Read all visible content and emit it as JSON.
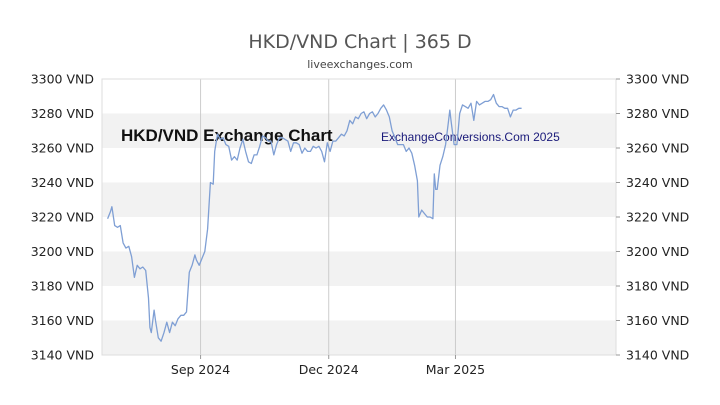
{
  "chart_data": {
    "type": "line",
    "title": "HKD/VND Chart | 365 D",
    "subtitle": "liveexchanges.com",
    "watermark_left": "HKD/VND Exchange Chart",
    "watermark_right": "ExchangeConversions.Com 2025",
    "xlabel": "",
    "ylabel": "",
    "ylim": [
      3140,
      3300
    ],
    "yticks": [
      3140,
      3160,
      3180,
      3200,
      3220,
      3240,
      3260,
      3280,
      3300
    ],
    "ytick_labels": [
      "3140 VND",
      "3160 VND",
      "3180 VND",
      "3200 VND",
      "3220 VND",
      "3240 VND",
      "3260 VND",
      "3280 VND",
      "3300 VND"
    ],
    "xlim": [
      0,
      365
    ],
    "xticks": [
      {
        "label": "Sep 2024",
        "x": 70
      },
      {
        "label": "Dec 2024",
        "x": 161
      },
      {
        "label": "Mar 2025",
        "x": 251
      }
    ],
    "grid": "vertical lines at x ticks, alternating horizontal bands",
    "line_color": "#7f9fd4",
    "band_color": "#f2f2f2",
    "series": [
      {
        "name": "",
        "points": [
          [
            4,
            3219
          ],
          [
            6,
            3223
          ],
          [
            7,
            3226
          ],
          [
            9,
            3215
          ],
          [
            11,
            3214
          ],
          [
            13,
            3215
          ],
          [
            15,
            3205
          ],
          [
            17,
            3202
          ],
          [
            19,
            3203
          ],
          [
            21,
            3197
          ],
          [
            23,
            3185
          ],
          [
            25,
            3192
          ],
          [
            27,
            3190
          ],
          [
            29,
            3191
          ],
          [
            31,
            3189
          ],
          [
            33,
            3173
          ],
          [
            34,
            3156
          ],
          [
            35,
            3153
          ],
          [
            37,
            3166
          ],
          [
            38,
            3160
          ],
          [
            40,
            3150
          ],
          [
            42,
            3148
          ],
          [
            44,
            3153
          ],
          [
            46,
            3159
          ],
          [
            48,
            3153
          ],
          [
            50,
            3159
          ],
          [
            52,
            3157
          ],
          [
            54,
            3161
          ],
          [
            56,
            3163
          ],
          [
            58,
            3163
          ],
          [
            60,
            3165
          ],
          [
            62,
            3188
          ],
          [
            64,
            3192
          ],
          [
            66,
            3198
          ],
          [
            67,
            3195
          ],
          [
            69,
            3192
          ],
          [
            71,
            3196
          ],
          [
            73,
            3200
          ],
          [
            75,
            3213
          ],
          [
            77,
            3240
          ],
          [
            79,
            3239
          ],
          [
            80,
            3258
          ],
          [
            82,
            3268
          ],
          [
            84,
            3265
          ],
          [
            86,
            3266
          ],
          [
            88,
            3262
          ],
          [
            90,
            3261
          ],
          [
            92,
            3253
          ],
          [
            94,
            3255
          ],
          [
            96,
            3253
          ],
          [
            98,
            3260
          ],
          [
            100,
            3265
          ],
          [
            102,
            3258
          ],
          [
            104,
            3252
          ],
          [
            106,
            3251
          ],
          [
            108,
            3256
          ],
          [
            110,
            3256
          ],
          [
            112,
            3261
          ],
          [
            114,
            3267
          ],
          [
            116,
            3266
          ],
          [
            118,
            3264
          ],
          [
            120,
            3264
          ],
          [
            122,
            3256
          ],
          [
            124,
            3262
          ],
          [
            126,
            3266
          ],
          [
            128,
            3266
          ],
          [
            130,
            3265
          ],
          [
            132,
            3264
          ],
          [
            134,
            3258
          ],
          [
            136,
            3263
          ],
          [
            138,
            3263
          ],
          [
            140,
            3262
          ],
          [
            142,
            3257
          ],
          [
            144,
            3260
          ],
          [
            146,
            3258
          ],
          [
            148,
            3258
          ],
          [
            150,
            3261
          ],
          [
            152,
            3260
          ],
          [
            154,
            3261
          ],
          [
            156,
            3258
          ],
          [
            158,
            3252
          ],
          [
            160,
            3263
          ],
          [
            162,
            3258
          ],
          [
            164,
            3264
          ],
          [
            166,
            3264
          ],
          [
            168,
            3266
          ],
          [
            170,
            3268
          ],
          [
            172,
            3267
          ],
          [
            174,
            3270
          ],
          [
            176,
            3276
          ],
          [
            178,
            3274
          ],
          [
            180,
            3278
          ],
          [
            182,
            3277
          ],
          [
            184,
            3280
          ],
          [
            186,
            3281
          ],
          [
            188,
            3277
          ],
          [
            190,
            3280
          ],
          [
            192,
            3281
          ],
          [
            194,
            3278
          ],
          [
            196,
            3280
          ],
          [
            198,
            3283
          ],
          [
            200,
            3285
          ],
          [
            202,
            3282
          ],
          [
            204,
            3278
          ],
          [
            206,
            3270
          ],
          [
            208,
            3266
          ],
          [
            210,
            3262
          ],
          [
            212,
            3262
          ],
          [
            214,
            3262
          ],
          [
            216,
            3258
          ],
          [
            218,
            3260
          ],
          [
            220,
            3257
          ],
          [
            222,
            3250
          ],
          [
            224,
            3241
          ],
          [
            225,
            3220
          ],
          [
            227,
            3224
          ],
          [
            229,
            3222
          ],
          [
            231,
            3220
          ],
          [
            233,
            3220
          ],
          [
            235,
            3219
          ],
          [
            236,
            3245
          ],
          [
            237,
            3236
          ],
          [
            238,
            3236
          ],
          [
            240,
            3250
          ],
          [
            242,
            3255
          ],
          [
            244,
            3262
          ],
          [
            246,
            3275
          ],
          [
            247,
            3282
          ],
          [
            248,
            3275
          ],
          [
            250,
            3262
          ],
          [
            252,
            3262
          ],
          [
            254,
            3280
          ],
          [
            256,
            3285
          ],
          [
            258,
            3284
          ],
          [
            260,
            3283
          ],
          [
            262,
            3286
          ],
          [
            264,
            3276
          ],
          [
            266,
            3287
          ],
          [
            268,
            3285
          ],
          [
            270,
            3286
          ],
          [
            272,
            3287
          ],
          [
            274,
            3287
          ],
          [
            276,
            3288
          ],
          [
            278,
            3291
          ],
          [
            280,
            3286
          ],
          [
            282,
            3284
          ],
          [
            284,
            3284
          ],
          [
            286,
            3283
          ],
          [
            288,
            3283
          ],
          [
            290,
            3278
          ],
          [
            292,
            3282
          ],
          [
            294,
            3282
          ],
          [
            296,
            3283
          ],
          [
            298,
            3283
          ]
        ]
      }
    ]
  }
}
